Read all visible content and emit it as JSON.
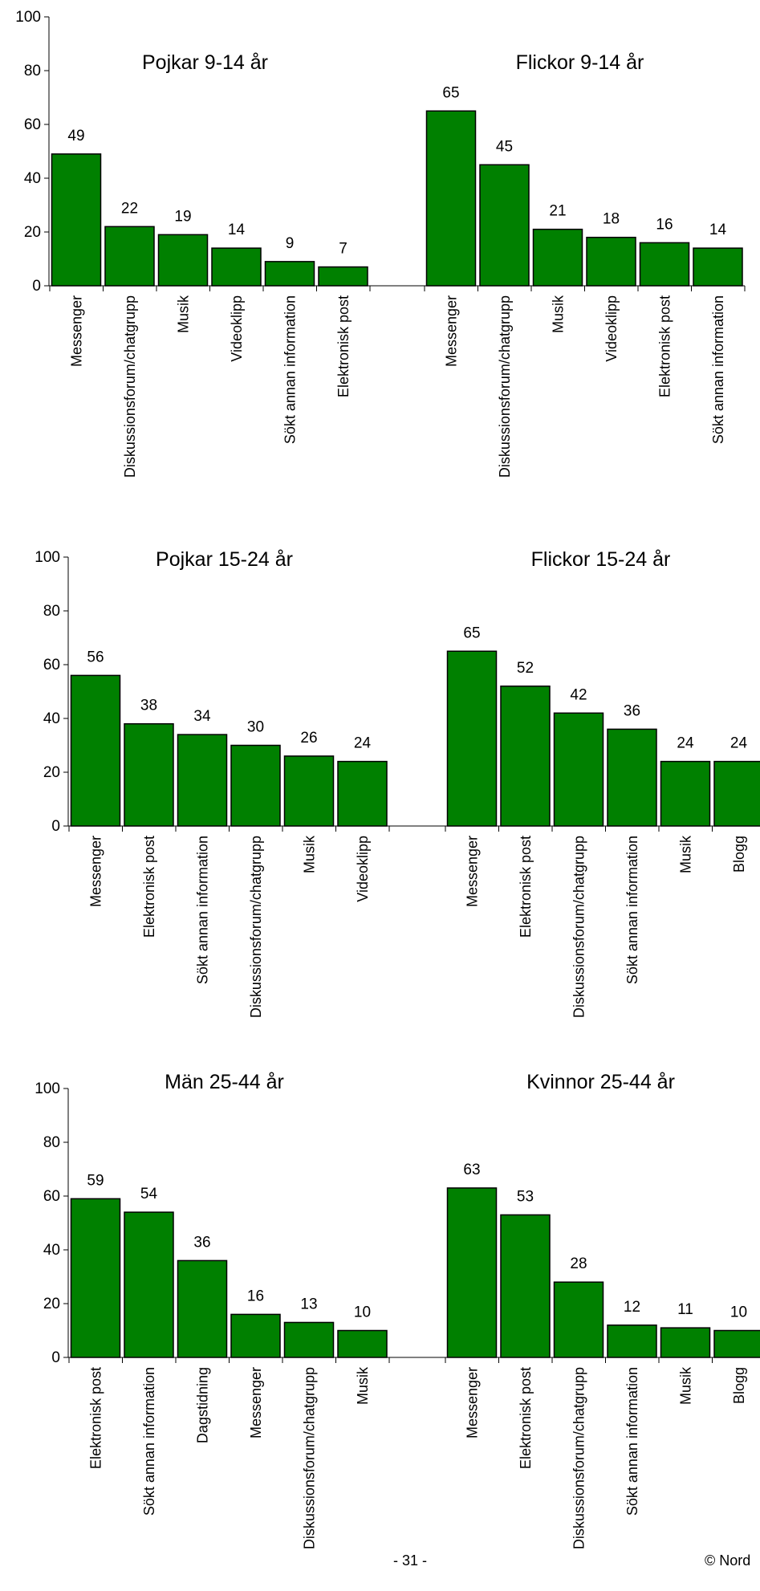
{
  "chart_data": [
    {
      "type": "bar",
      "ylim": [
        0,
        100
      ],
      "yticks": [
        0,
        20,
        40,
        60,
        80,
        100
      ],
      "bar_color": "#008000",
      "panels": [
        {
          "title": "Pojkar 9-14 år",
          "categories": [
            "Messenger",
            "Diskussionsforum/chatgrupp",
            "Musik",
            "Videoklipp",
            "Sökt annan information",
            "Elektronisk post"
          ],
          "values": [
            49,
            22,
            19,
            14,
            9,
            7
          ]
        },
        {
          "title": "Flickor 9-14 år",
          "categories": [
            "Messenger",
            "Diskussionsforum/chatgrupp",
            "Musik",
            "Videoklipp",
            "Elektronisk post",
            "Sökt annan information"
          ],
          "values": [
            65,
            45,
            21,
            18,
            16,
            14
          ]
        }
      ]
    },
    {
      "type": "bar",
      "ylim": [
        0,
        100
      ],
      "yticks": [
        0,
        20,
        40,
        60,
        80,
        100
      ],
      "bar_color": "#008000",
      "panels": [
        {
          "title": "Pojkar 15-24 år",
          "categories": [
            "Messenger",
            "Elektronisk post",
            "Sökt annan information",
            "Diskussionsforum/chatgrupp",
            "Musik",
            "Videoklipp"
          ],
          "values": [
            56,
            38,
            34,
            30,
            26,
            24
          ]
        },
        {
          "title": "Flickor 15-24 år",
          "categories": [
            "Messenger",
            "Elektronisk post",
            "Diskussionsforum/chatgrupp",
            "Sökt annan information",
            "Musik",
            "Blogg"
          ],
          "values": [
            65,
            52,
            42,
            36,
            24,
            24
          ]
        }
      ]
    },
    {
      "type": "bar",
      "ylim": [
        0,
        100
      ],
      "yticks": [
        0,
        20,
        40,
        60,
        80,
        100
      ],
      "bar_color": "#008000",
      "panels": [
        {
          "title": "Män 25-44 år",
          "categories": [
            "Elektronisk post",
            "Sökt annan information",
            "Dagstidning",
            "Messenger",
            "Diskussionsforum/chatgrupp",
            "Musik"
          ],
          "values": [
            59,
            54,
            36,
            16,
            13,
            10
          ]
        },
        {
          "title": "Kvinnor 25-44 år",
          "categories": [
            "Messenger",
            "Elektronisk post",
            "Diskussionsforum/chatgrupp",
            "Sökt annan information",
            "Musik",
            "Blogg"
          ],
          "values": [
            63,
            53,
            28,
            12,
            11,
            10
          ]
        }
      ]
    }
  ],
  "footer": {
    "page_number": "- 31 -",
    "copyright": "© Nord"
  }
}
